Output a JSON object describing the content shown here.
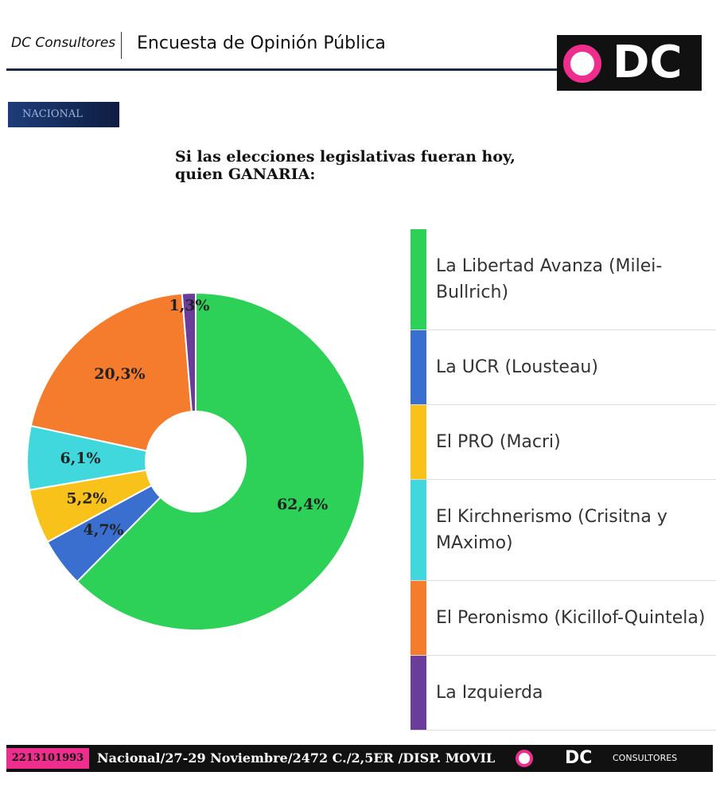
{
  "header": {
    "brand": "DC Consultores",
    "survey": "Encuesta de Opinión Pública",
    "logo": "DC",
    "badge": "NACIONAL"
  },
  "chart_data": {
    "type": "pie",
    "donut": true,
    "title": "Si las elecciones legislativas fueran hoy, quien GANARIA:",
    "categories": [
      "La Libertad Avanza (Milei-Bullrich)",
      "La UCR (Lousteau)",
      "El PRO (Macri)",
      "El Kirchnerismo (Crisitna y MAximo)",
      "El Peronismo (Kicillof-Quintela)",
      "La Izquierda"
    ],
    "values": [
      62.4,
      4.7,
      5.2,
      6.1,
      20.3,
      1.3
    ],
    "value_labels": [
      "62,4%",
      "4,7%",
      "5,2%",
      "6,1%",
      "20,3%",
      "1,3%"
    ],
    "colors": [
      "#2ed158",
      "#3a6fd0",
      "#f9c21a",
      "#40d8dc",
      "#f47c2c",
      "#6a3d9a"
    ]
  },
  "footer": {
    "phone": "2213101993",
    "text": "Nacional/27-29 Noviembre/2472 C./2,5ER /DISP. MOVIL",
    "logo": "DC",
    "brand": "CONSULTORES"
  }
}
